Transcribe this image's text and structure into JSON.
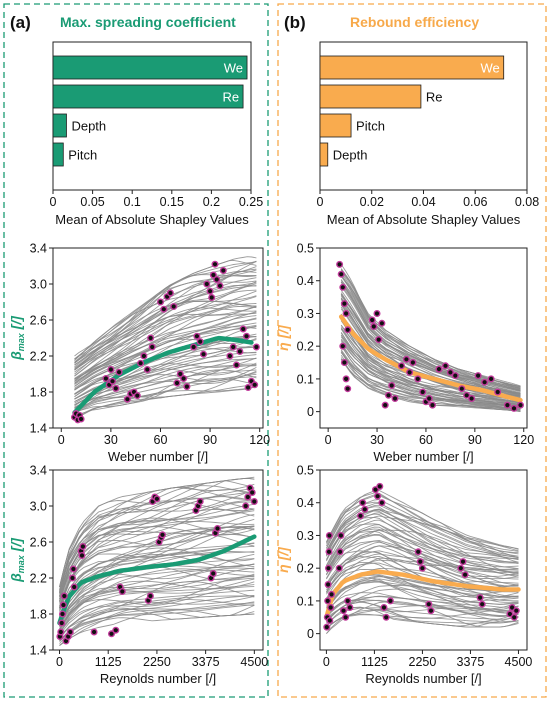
{
  "panels": [
    {
      "letter": "(a)",
      "heading": "Max. spreading coefficient",
      "accent": "#1a9b74"
    },
    {
      "letter": "(b)",
      "heading": "Rebound efficiency",
      "accent": "#f7a94a"
    }
  ],
  "colors": {
    "bar_green": "#1a9b74",
    "bar_orange": "#f9ab4e",
    "trace_gray": "#8a8a8a",
    "marker_fill": "#111111",
    "marker_edge": "#c0389a",
    "border_green": "#1a9b74",
    "border_orange": "#f7a94a"
  },
  "chart_data": [
    {
      "id": "a-bar",
      "type": "bar",
      "orientation": "horizontal",
      "categories": [
        "We",
        "Re",
        "Depth",
        "Pitch"
      ],
      "values": [
        0.245,
        0.24,
        0.017,
        0.013
      ],
      "xlabel": "Mean of Absolute Shapley Values",
      "xlim": [
        0,
        0.25
      ],
      "xticks": [
        "0",
        "0.05",
        "0.1",
        "0.15",
        "0.2",
        "0.25"
      ],
      "label_inside": [
        true,
        true,
        false,
        false
      ]
    },
    {
      "id": "b-bar",
      "type": "bar",
      "orientation": "horizontal",
      "categories": [
        "We",
        "Re",
        "Pitch",
        "Depth"
      ],
      "values": [
        0.071,
        0.039,
        0.012,
        0.003
      ],
      "xlabel": "Mean of Absolute Shapley Values",
      "xlim": [
        0,
        0.08
      ],
      "xticks": [
        "0",
        "0.02",
        "0.04",
        "0.06",
        "0.08"
      ],
      "label_inside": [
        true,
        false,
        false,
        false
      ]
    },
    {
      "id": "a-weber",
      "type": "line",
      "xlabel": "Weber number [/]",
      "ylabel": "β",
      "ylabel_sub": "max",
      "ylabel_unit": " [/]",
      "xlim": [
        -5,
        122
      ],
      "ylim": [
        1.4,
        3.4
      ],
      "xticks": [
        "0",
        "30",
        "60",
        "90",
        "120"
      ],
      "yticks": [
        "1.4",
        "1.8",
        "2.2",
        "2.6",
        "3.0",
        "3.4"
      ],
      "mean_curve": {
        "x": [
          8,
          20,
          35,
          50,
          65,
          80,
          95,
          105,
          115
        ],
        "y": [
          1.57,
          1.8,
          1.99,
          2.13,
          2.24,
          2.32,
          2.4,
          2.38,
          2.35
        ]
      },
      "band": {
        "x": [
          8,
          20,
          35,
          50,
          65,
          80,
          95,
          105,
          118
        ],
        "low": [
          1.5,
          1.6,
          1.65,
          1.7,
          1.75,
          1.78,
          1.8,
          1.82,
          1.84
        ],
        "high": [
          2.2,
          2.38,
          2.58,
          2.78,
          2.98,
          3.12,
          3.22,
          3.28,
          3.32
        ]
      },
      "points": [
        [
          8,
          1.52
        ],
        [
          9,
          1.56
        ],
        [
          10,
          1.49
        ],
        [
          11,
          1.54
        ],
        [
          12,
          1.5
        ],
        [
          27,
          1.95
        ],
        [
          29,
          1.88
        ],
        [
          31,
          1.92
        ],
        [
          33,
          1.84
        ],
        [
          35,
          2.02
        ],
        [
          30,
          2.05
        ],
        [
          40,
          1.72
        ],
        [
          42,
          1.78
        ],
        [
          44,
          1.8
        ],
        [
          46,
          1.76
        ],
        [
          48,
          2.12
        ],
        [
          50,
          2.2
        ],
        [
          52,
          2.05
        ],
        [
          55,
          2.3
        ],
        [
          54,
          2.4
        ],
        [
          60,
          2.8
        ],
        [
          62,
          2.72
        ],
        [
          64,
          2.86
        ],
        [
          66,
          2.9
        ],
        [
          68,
          2.75
        ],
        [
          70,
          1.9
        ],
        [
          72,
          2.0
        ],
        [
          74,
          1.95
        ],
        [
          76,
          1.86
        ],
        [
          80,
          2.3
        ],
        [
          82,
          2.42
        ],
        [
          84,
          2.36
        ],
        [
          86,
          2.22
        ],
        [
          88,
          3.0
        ],
        [
          90,
          2.92
        ],
        [
          92,
          3.1
        ],
        [
          94,
          3.05
        ],
        [
          96,
          2.98
        ],
        [
          98,
          3.15
        ],
        [
          93,
          3.22
        ],
        [
          91,
          2.85
        ],
        [
          102,
          2.2
        ],
        [
          104,
          2.3
        ],
        [
          106,
          2.1
        ],
        [
          108,
          2.25
        ],
        [
          110,
          2.5
        ],
        [
          112,
          2.42
        ],
        [
          113,
          1.85
        ],
        [
          115,
          1.92
        ],
        [
          117,
          1.88
        ],
        [
          118,
          2.3
        ]
      ]
    },
    {
      "id": "b-weber",
      "type": "line",
      "xlabel": "Weber number [/]",
      "ylabel": "η",
      "ylabel_sub": "",
      "ylabel_unit": " [/]",
      "xlim": [
        -5,
        122
      ],
      "ylim": [
        -0.05,
        0.5
      ],
      "xticks": [
        "0",
        "30",
        "60",
        "90",
        "120"
      ],
      "yticks": [
        "0",
        "0.1",
        "0.2",
        "0.3",
        "0.4",
        "0.5"
      ],
      "mean_curve": {
        "x": [
          8,
          15,
          25,
          35,
          50,
          65,
          80,
          95,
          110,
          118
        ],
        "y": [
          0.29,
          0.24,
          0.19,
          0.16,
          0.12,
          0.1,
          0.08,
          0.065,
          0.045,
          0.035
        ]
      },
      "band": {
        "x": [
          8,
          15,
          25,
          35,
          50,
          65,
          80,
          95,
          110,
          118
        ],
        "low": [
          0.16,
          0.11,
          0.07,
          0.05,
          0.03,
          0.02,
          0.015,
          0.01,
          0.005,
          0.0
        ],
        "high": [
          0.45,
          0.4,
          0.3,
          0.25,
          0.2,
          0.16,
          0.13,
          0.11,
          0.09,
          0.08
        ]
      },
      "points": [
        [
          7,
          0.45
        ],
        [
          8,
          0.42
        ],
        [
          9,
          0.38
        ],
        [
          10,
          0.33
        ],
        [
          11,
          0.3
        ],
        [
          12,
          0.25
        ],
        [
          9,
          0.2
        ],
        [
          10,
          0.15
        ],
        [
          11,
          0.1
        ],
        [
          12,
          0.07
        ],
        [
          27,
          0.28
        ],
        [
          28,
          0.26
        ],
        [
          30,
          0.3
        ],
        [
          31,
          0.22
        ],
        [
          33,
          0.27
        ],
        [
          35,
          0.02
        ],
        [
          37,
          0.05
        ],
        [
          39,
          0.08
        ],
        [
          41,
          0.04
        ],
        [
          45,
          0.14
        ],
        [
          48,
          0.16
        ],
        [
          50,
          0.12
        ],
        [
          52,
          0.15
        ],
        [
          55,
          0.1
        ],
        [
          58,
          0.06
        ],
        [
          60,
          0.03
        ],
        [
          62,
          0.04
        ],
        [
          64,
          0.02
        ],
        [
          68,
          0.13
        ],
        [
          72,
          0.14
        ],
        [
          75,
          0.12
        ],
        [
          78,
          0.11
        ],
        [
          82,
          0.07
        ],
        [
          85,
          0.05
        ],
        [
          88,
          0.04
        ],
        [
          92,
          0.11
        ],
        [
          96,
          0.09
        ],
        [
          100,
          0.1
        ],
        [
          104,
          0.06
        ],
        [
          110,
          0.02
        ],
        [
          114,
          0.01
        ],
        [
          118,
          0.02
        ]
      ]
    },
    {
      "id": "a-reynolds",
      "type": "line",
      "xlabel": "Reynolds number [/]",
      "ylabel": "β",
      "ylabel_sub": "max",
      "ylabel_unit": " [/]",
      "xlim": [
        -150,
        4700
      ],
      "ylim": [
        1.4,
        3.4
      ],
      "xticks": [
        "0",
        "1125",
        "2250",
        "3375",
        "4500"
      ],
      "yticks": [
        "1.4",
        "1.8",
        "2.2",
        "2.6",
        "3.0",
        "3.4"
      ],
      "mean_curve": {
        "x": [
          0,
          200,
          500,
          900,
          1400,
          2000,
          2600,
          3200,
          3800,
          4500
        ],
        "y": [
          1.7,
          1.98,
          2.15,
          2.22,
          2.28,
          2.32,
          2.35,
          2.4,
          2.5,
          2.66
        ]
      },
      "band": {
        "x": [
          0,
          200,
          500,
          900,
          1400,
          2000,
          2600,
          3200,
          3800,
          4500
        ],
        "low": [
          1.45,
          1.52,
          1.6,
          1.65,
          1.7,
          1.72,
          1.74,
          1.76,
          1.78,
          1.8
        ],
        "high": [
          2.1,
          2.5,
          2.8,
          3.0,
          3.1,
          3.15,
          3.2,
          3.24,
          3.28,
          3.32
        ]
      },
      "points": [
        [
          10,
          1.55
        ],
        [
          30,
          1.6
        ],
        [
          50,
          1.7
        ],
        [
          70,
          1.8
        ],
        [
          90,
          1.9
        ],
        [
          110,
          2.0
        ],
        [
          150,
          1.5
        ],
        [
          200,
          1.55
        ],
        [
          250,
          1.6
        ],
        [
          300,
          2.2
        ],
        [
          320,
          2.3
        ],
        [
          340,
          2.1
        ],
        [
          500,
          2.5
        ],
        [
          520,
          2.45
        ],
        [
          540,
          2.55
        ],
        [
          800,
          1.6
        ],
        [
          1200,
          1.58
        ],
        [
          1300,
          1.62
        ],
        [
          1400,
          2.1
        ],
        [
          1450,
          2.05
        ],
        [
          2050,
          1.95
        ],
        [
          2100,
          2.0
        ],
        [
          2150,
          3.05
        ],
        [
          2200,
          3.1
        ],
        [
          2250,
          3.08
        ],
        [
          2300,
          2.6
        ],
        [
          2350,
          2.65
        ],
        [
          2380,
          2.68
        ],
        [
          3150,
          2.95
        ],
        [
          3200,
          3.0
        ],
        [
          3250,
          3.05
        ],
        [
          3500,
          2.2
        ],
        [
          3550,
          2.25
        ],
        [
          3600,
          2.7
        ],
        [
          3650,
          2.75
        ],
        [
          4300,
          3.0
        ],
        [
          4350,
          3.1
        ],
        [
          4400,
          3.2
        ],
        [
          4450,
          3.15
        ],
        [
          4500,
          3.05
        ]
      ]
    },
    {
      "id": "b-reynolds",
      "type": "line",
      "xlabel": "Reynolds number [/]",
      "ylabel": "η",
      "ylabel_sub": "",
      "ylabel_unit": " [/]",
      "xlim": [
        -150,
        4700
      ],
      "ylim": [
        -0.05,
        0.5
      ],
      "xticks": [
        "0",
        "1125",
        "2250",
        "3375",
        "4500"
      ],
      "yticks": [
        "0",
        "0.1",
        "0.2",
        "0.3",
        "0.4",
        "0.5"
      ],
      "mean_curve": {
        "x": [
          0,
          150,
          400,
          800,
          1200,
          1800,
          2500,
          3300,
          4100,
          4500
        ],
        "y": [
          0.05,
          0.12,
          0.16,
          0.18,
          0.19,
          0.18,
          0.16,
          0.145,
          0.135,
          0.135
        ]
      },
      "band": {
        "x": [
          0,
          150,
          400,
          800,
          1200,
          1800,
          2500,
          3300,
          4100,
          4500
        ],
        "low": [
          0.0,
          0.02,
          0.04,
          0.05,
          0.05,
          0.04,
          0.03,
          0.02,
          0.02,
          0.03
        ],
        "high": [
          0.28,
          0.32,
          0.38,
          0.42,
          0.44,
          0.4,
          0.35,
          0.3,
          0.27,
          0.26
        ]
      },
      "points": [
        [
          10,
          0.02
        ],
        [
          20,
          0.05
        ],
        [
          30,
          0.1
        ],
        [
          40,
          0.15
        ],
        [
          50,
          0.2
        ],
        [
          60,
          0.25
        ],
        [
          70,
          0.3
        ],
        [
          80,
          0.04
        ],
        [
          100,
          0.08
        ],
        [
          120,
          0.12
        ],
        [
          300,
          0.2
        ],
        [
          320,
          0.25
        ],
        [
          340,
          0.3
        ],
        [
          400,
          0.07
        ],
        [
          450,
          0.05
        ],
        [
          500,
          0.1
        ],
        [
          550,
          0.08
        ],
        [
          800,
          0.36
        ],
        [
          850,
          0.4
        ],
        [
          900,
          0.38
        ],
        [
          1150,
          0.44
        ],
        [
          1200,
          0.42
        ],
        [
          1250,
          0.45
        ],
        [
          1300,
          0.4
        ],
        [
          1350,
          0.08
        ],
        [
          1400,
          0.05
        ],
        [
          1500,
          0.1
        ],
        [
          2150,
          0.25
        ],
        [
          2200,
          0.22
        ],
        [
          2250,
          0.2
        ],
        [
          2400,
          0.09
        ],
        [
          2450,
          0.07
        ],
        [
          3150,
          0.2
        ],
        [
          3200,
          0.22
        ],
        [
          3250,
          0.18
        ],
        [
          3600,
          0.11
        ],
        [
          3650,
          0.09
        ],
        [
          4300,
          0.06
        ],
        [
          4350,
          0.08
        ],
        [
          4400,
          0.05
        ],
        [
          4450,
          0.07
        ]
      ]
    }
  ]
}
